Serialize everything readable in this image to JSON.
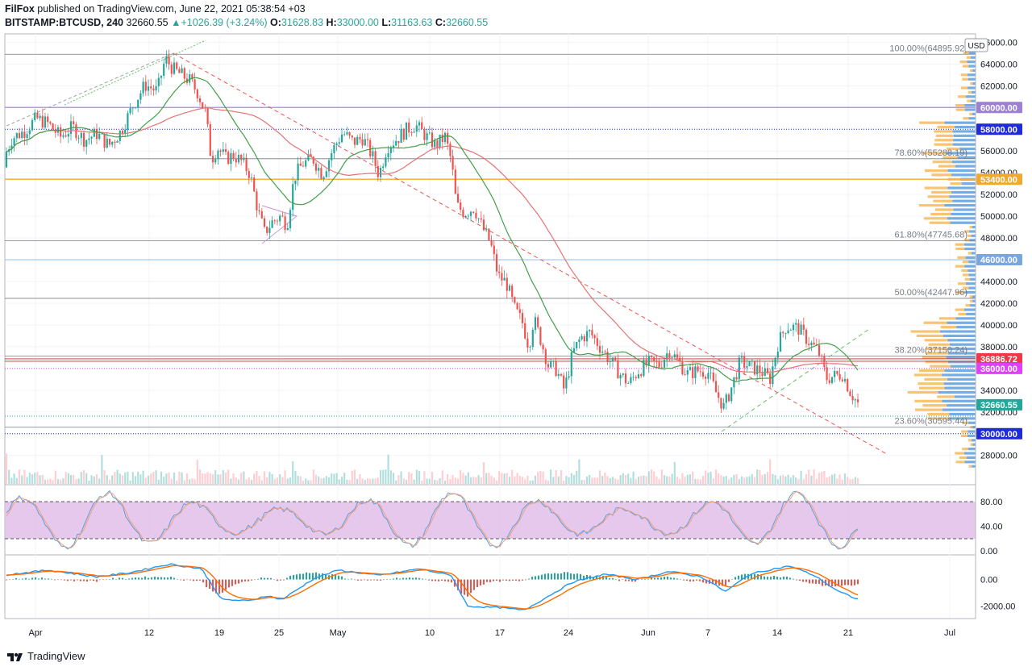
{
  "header": {
    "author": "FilFox",
    "published_text": " published on TradingView.com, June 22, 2021 05:38:54 +03",
    "symbol": "BITSTAMP:BTCUSD, 240",
    "last": "32660.55",
    "change": "+1026.39 (+3.24%)",
    "o_label": "O:",
    "o": "31628.83",
    "h_label": "H:",
    "h": "33000.00",
    "l_label": "L:",
    "l": "31163.63",
    "c_label": "C:",
    "c": "32660.55"
  },
  "footer": {
    "brand": "TradingView"
  },
  "colors": {
    "up": "#26a69a",
    "down": "#ef5350",
    "ma": "#e57373",
    "ema": "#4caf50",
    "purple_band": "#e1bee7",
    "volume_blue": "#5c9ede",
    "volume_orange": "#f5b041"
  },
  "chart_data": [
    {
      "type": "candlestick",
      "panel": "price",
      "currency": "USD",
      "x_ticks": [
        "Apr",
        "12",
        "19",
        "25",
        "May",
        "10",
        "17",
        "24",
        "Jun",
        "7",
        "14",
        "21",
        "Jul"
      ],
      "y_ticks": [
        "66000.00",
        "64000.00",
        "62000.00",
        "60000.00",
        "58000.00",
        "56000.00",
        "54000.00",
        "52000.00",
        "50000.00",
        "48000.00",
        "46000.00",
        "44000.00",
        "42000.00",
        "40000.00",
        "38000.00",
        "36000.00",
        "34000.00",
        "32000.00",
        "30000.00",
        "28000.00"
      ],
      "ylim": [
        26200,
        66400
      ],
      "fib_levels": [
        {
          "label": "100.00%(64895.92)",
          "value": 64895.92
        },
        {
          "label": "78.60%(55288.19)",
          "value": 55288.19
        },
        {
          "label": "61.80%(47745.68)",
          "value": 47745.68
        },
        {
          "label": "50.00%(42447.96)",
          "value": 42447.96
        },
        {
          "label": "38.20%(37150.24)",
          "value": 37150.24
        },
        {
          "label": "23.60%(30595.44)",
          "value": 30595.44
        }
      ],
      "price_labels": [
        {
          "value": 60000,
          "text": "60000.00",
          "bg": "#9c80d4"
        },
        {
          "value": 58000,
          "text": "58000.00",
          "bg": "#1e2bd6"
        },
        {
          "value": 53400,
          "text": "53400.00",
          "bg": "#f0a830"
        },
        {
          "value": 46000,
          "text": "46000.00",
          "bg": "#7aa6e0"
        },
        {
          "value": 36886.72,
          "text": "36886.72",
          "bg": "#f23645"
        },
        {
          "value": 36000,
          "text": "36000.00",
          "bg": "#e040fb"
        },
        {
          "value": 32660.55,
          "text": "32660.55",
          "bg": "#26a69a"
        },
        {
          "value": 30000,
          "text": "30000.00",
          "bg": "#1e2bd6"
        }
      ],
      "closes_path": [
        [
          0,
          54500
        ],
        [
          15,
          57200
        ],
        [
          30,
          57800
        ],
        [
          45,
          59000
        ],
        [
          60,
          58500
        ],
        [
          75,
          57300
        ],
        [
          90,
          58200
        ],
        [
          105,
          57000
        ],
        [
          120,
          57600
        ],
        [
          135,
          56500
        ],
        [
          150,
          57800
        ],
        [
          165,
          60200
        ],
        [
          180,
          62100
        ],
        [
          195,
          61500
        ],
        [
          205,
          64500
        ],
        [
          215,
          63500
        ],
        [
          225,
          63000
        ],
        [
          235,
          62500
        ],
        [
          245,
          61400
        ],
        [
          255,
          59500
        ],
        [
          262,
          55200
        ],
        [
          270,
          56300
        ],
        [
          280,
          55300
        ],
        [
          290,
          55600
        ],
        [
          300,
          55000
        ],
        [
          310,
          53900
        ],
        [
          320,
          50500
        ],
        [
          328,
          48500
        ],
        [
          338,
          49500
        ],
        [
          348,
          50000
        ],
        [
          356,
          49200
        ],
        [
          365,
          53600
        ],
        [
          375,
          54800
        ],
        [
          388,
          55300
        ],
        [
          400,
          53800
        ],
        [
          412,
          56000
        ],
        [
          425,
          57700
        ],
        [
          438,
          56800
        ],
        [
          450,
          57200
        ],
        [
          462,
          55500
        ],
        [
          470,
          53800
        ],
        [
          480,
          56400
        ],
        [
          492,
          57100
        ],
        [
          505,
          58000
        ],
        [
          515,
          58400
        ],
        [
          528,
          57400
        ],
        [
          540,
          56500
        ],
        [
          552,
          57300
        ],
        [
          560,
          55000
        ],
        [
          566,
          51000
        ],
        [
          576,
          50300
        ],
        [
          588,
          50800
        ],
        [
          598,
          49000
        ],
        [
          608,
          47600
        ],
        [
          618,
          44500
        ],
        [
          628,
          43900
        ],
        [
          638,
          41500
        ],
        [
          648,
          40200
        ],
        [
          656,
          38000
        ],
        [
          662,
          40600
        ],
        [
          670,
          38800
        ],
        [
          680,
          36300
        ],
        [
          690,
          35900
        ],
        [
          700,
          34000
        ],
        [
          710,
          37300
        ],
        [
          720,
          38800
        ],
        [
          732,
          39300
        ],
        [
          745,
          37900
        ],
        [
          758,
          36600
        ],
        [
          770,
          35400
        ],
        [
          780,
          34600
        ],
        [
          792,
          35800
        ],
        [
          805,
          36500
        ],
        [
          818,
          36300
        ],
        [
          830,
          37700
        ],
        [
          842,
          36600
        ],
        [
          852,
          35500
        ],
        [
          865,
          35800
        ],
        [
          878,
          35700
        ],
        [
          888,
          33800
        ],
        [
          898,
          32400
        ],
        [
          908,
          34400
        ],
        [
          918,
          36600
        ],
        [
          930,
          36200
        ],
        [
          945,
          35700
        ],
        [
          955,
          35000
        ],
        [
          965,
          38300
        ],
        [
          975,
          39900
        ],
        [
          990,
          39700
        ],
        [
          1005,
          38300
        ],
        [
          1015,
          37600
        ],
        [
          1025,
          35100
        ],
        [
          1035,
          35300
        ],
        [
          1045,
          35500
        ],
        [
          1055,
          33800
        ],
        [
          1065,
          32660
        ]
      ]
    },
    {
      "type": "line",
      "panel": "stochastic_rsi",
      "y_ticks": [
        "80.00",
        "40.00",
        "0.00"
      ],
      "ylim": [
        0,
        100
      ],
      "band": [
        20,
        80
      ]
    },
    {
      "type": "line",
      "panel": "macd",
      "y_ticks": [
        "0.00",
        "-2000.00"
      ],
      "ylim": [
        -2800,
        1600
      ]
    }
  ]
}
